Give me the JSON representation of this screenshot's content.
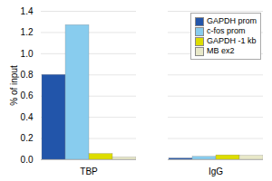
{
  "chart_data": {
    "type": "bar",
    "categories": [
      "TBP",
      "IgG"
    ],
    "series": [
      {
        "name": "GAPDH prom",
        "color": "#2255aa",
        "values": [
          0.8,
          0.012
        ]
      },
      {
        "name": "c-fos prom",
        "color": "#88ccee",
        "values": [
          1.27,
          0.028
        ]
      },
      {
        "name": "GAPDH -1 kb",
        "color": "#dddd00",
        "values": [
          0.055,
          0.042
        ]
      },
      {
        "name": "MB ex2",
        "color": "#e8e8c8",
        "values": [
          0.022,
          0.038
        ]
      }
    ],
    "ylabel": "% of input",
    "ylim": [
      0,
      1.4
    ],
    "yticks": [
      {
        "value": 0,
        "label": "0.0"
      },
      0.2,
      0.4,
      0.6,
      0.8,
      {
        "value": 1,
        "label": "1.0"
      },
      1.2,
      1.4
    ],
    "grid": true,
    "legend": "upper right"
  }
}
